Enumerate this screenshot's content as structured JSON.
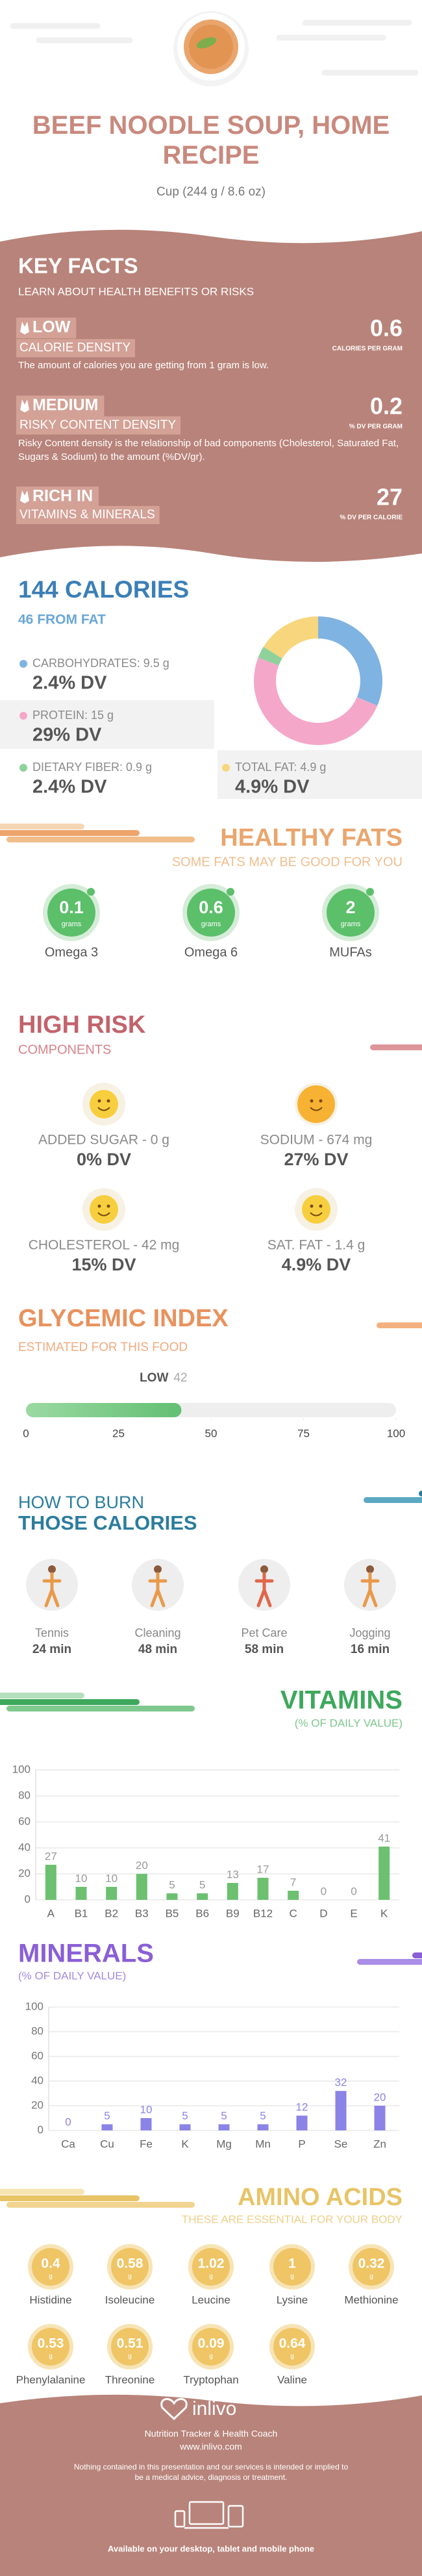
{
  "header": {
    "title": "BEEF NOODLE SOUP, HOME RECIPE",
    "serving": "Cup (244 g / 8.6 oz)"
  },
  "key_facts": {
    "title": "KEY FACTS",
    "subtitle": "LEARN ABOUT HEALTH BENEFITS OR RISKS",
    "items": [
      {
        "level": "LOW",
        "label": "CALORIE DENSITY",
        "value": "0.6",
        "unit": "CALORIES PER GRAM",
        "description": "The amount of calories you are getting from 1 gram is low."
      },
      {
        "level": "MEDIUM",
        "label": "RISKY CONTENT DENSITY",
        "value": "0.2",
        "unit": "% DV PER GRAM",
        "description": "Risky Content density is the relationship of bad components (Cholesterol, Saturated Fat, Sugars & Sodium) to the amount (%DV/gr)."
      },
      {
        "level": "RICH  IN",
        "label": "VITAMINS & MINERALS",
        "value": "27",
        "unit": "% DV PER CALORIE"
      }
    ]
  },
  "calories": {
    "title": "144 CALORIES",
    "subtitle": "46 FROM FAT",
    "nutrients": [
      {
        "label": "CARBOHYDRATES: 9.5 g",
        "dv": "2.4% DV"
      },
      {
        "label": "PROTEIN: 15 g",
        "dv": "29% DV"
      },
      {
        "label": "DIETARY FIBER: 0.9 g",
        "dv": "2.4% DV"
      },
      {
        "label": "TOTAL FAT: 4.9 g",
        "dv": "4.9% DV"
      }
    ]
  },
  "healthy_fats": {
    "title": "HEALTHY FATS",
    "subtitle": "SOME FATS MAY BE GOOD FOR YOU",
    "items": [
      {
        "value": "0.1",
        "unit": "grams",
        "name": "Omega 3"
      },
      {
        "value": "0.6",
        "unit": "grams",
        "name": "Omega 6"
      },
      {
        "value": "2",
        "unit": "grams",
        "name": "MUFAs"
      }
    ]
  },
  "high_risk": {
    "title": "HIGH RISK",
    "subtitle": "COMPONENTS",
    "items": [
      {
        "label": "ADDED SUGAR - 0 g",
        "dv": "0% DV"
      },
      {
        "label": "SODIUM - 674 mg",
        "dv": "27% DV"
      },
      {
        "label": "CHOLESTEROL - 42 mg",
        "dv": "15% DV"
      },
      {
        "label": "SAT. FAT - 1.4 g",
        "dv": "4.9% DV"
      }
    ]
  },
  "burn": {
    "title": "HOW TO BURN",
    "title2": "THOSE CALORIES",
    "items": [
      {
        "name": "Tennis",
        "time": "24 min"
      },
      {
        "name": "Cleaning",
        "time": "48 min"
      },
      {
        "name": "Pet Care",
        "time": "58 min"
      },
      {
        "name": "Jogging",
        "time": "16 min"
      }
    ]
  },
  "amino_acids": {
    "title": "AMINO ACIDS",
    "subtitle": "THESE ARE ESSENTIAL FOR YOUR BODY",
    "items": [
      {
        "value": "0.4",
        "unit": "g",
        "name": "Histidine"
      },
      {
        "value": "0.58",
        "unit": "g",
        "name": "Isoleucine"
      },
      {
        "value": "1.02",
        "unit": "g",
        "name": "Leucine"
      },
      {
        "value": "1",
        "unit": "g",
        "name": "Lysine"
      },
      {
        "value": "0.32",
        "unit": "g",
        "name": "Methionine"
      },
      {
        "value": "0.53",
        "unit": "g",
        "name": "Phenylalanine"
      },
      {
        "value": "0.51",
        "unit": "g",
        "name": "Threonine"
      },
      {
        "value": "0.09",
        "unit": "g",
        "name": "Tryptophan"
      },
      {
        "value": "0.64",
        "unit": "g",
        "name": "Valine"
      }
    ]
  },
  "footer": {
    "brand": "inlivo",
    "tagline": "Nutrition Tracker & Health Coach",
    "url": "www.inlivo.com",
    "disclaimer": "Nothing contained in this presentation and our services is intended or implied to be a medical advice, diagnosis or treatment.",
    "available": "Available on your desktop, tablet and mobile phone"
  },
  "chart_data": [
    {
      "type": "pie",
      "values": [
        9.5,
        15,
        0.9,
        4.9
      ],
      "colors": [
        "#7fb3e2",
        "#f4a7c9",
        "#8fd19b",
        "#f7d67e"
      ]
    },
    {
      "type": "hbar",
      "title": "GLYCEMIC INDEX",
      "subtitle": "ESTIMATED FOR THIS FOOD",
      "categories": [
        "LOW"
      ],
      "values": [
        42
      ],
      "color": "#62bf73",
      "xlim": [
        0,
        100
      ],
      "xticks": [
        0,
        25,
        50,
        75,
        100
      ]
    },
    {
      "type": "bar",
      "title": "VITAMINS",
      "subtitle": "(% OF DAILY VALUE)",
      "categories": [
        "A",
        "B1",
        "B2",
        "B3",
        "B5",
        "B6",
        "B9",
        "B12",
        "C",
        "D",
        "E",
        "K"
      ],
      "values": [
        27,
        10,
        10,
        20,
        5,
        5,
        13,
        17,
        7,
        0,
        0,
        41
      ],
      "color": "#6cc070",
      "ylim": [
        0,
        100
      ],
      "yticks": [
        0,
        20,
        40,
        60,
        80,
        100
      ],
      "grid": true
    },
    {
      "type": "bar",
      "title": "MINERALS",
      "subtitle": "(% OF DAILY VALUE)",
      "categories": [
        "Ca",
        "Cu",
        "Fe",
        "K",
        "Mg",
        "Mn",
        "P",
        "Se",
        "Zn"
      ],
      "values": [
        0,
        5,
        10,
        5,
        5,
        5,
        12,
        32,
        20
      ],
      "color": "#8b83e6",
      "ylim": [
        0,
        100
      ],
      "yticks": [
        0,
        20,
        40,
        60,
        80,
        100
      ],
      "grid": true
    }
  ]
}
